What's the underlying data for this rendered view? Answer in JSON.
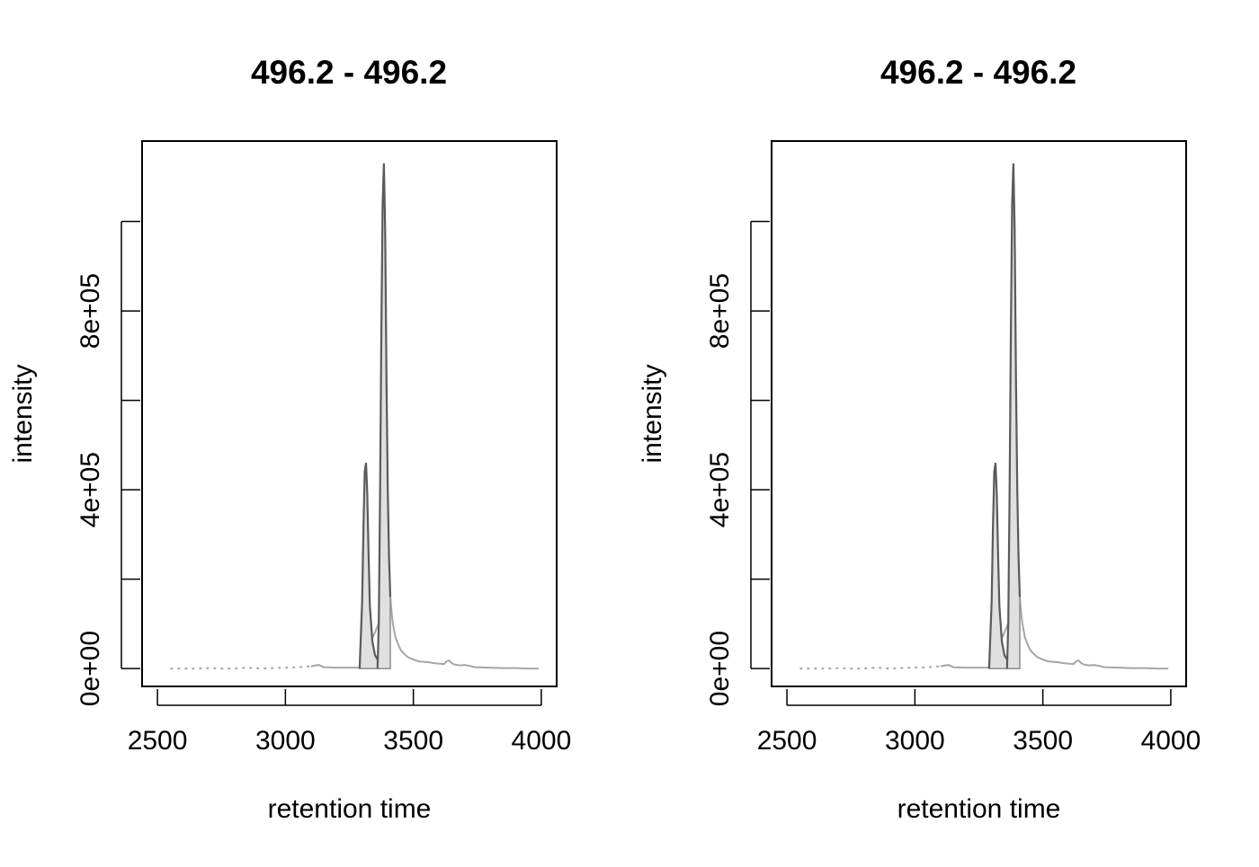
{
  "chart_data": [
    {
      "type": "line",
      "title": "496.2 - 496.2",
      "xlabel": "retention time",
      "ylabel": "intensity",
      "xlim": [
        2440,
        4060
      ],
      "ylim": [
        -40000,
        1180000
      ],
      "x_ticks": [
        2500,
        3000,
        3500,
        4000
      ],
      "x_tick_labels": [
        "2500",
        "3000",
        "3500",
        "4000"
      ],
      "y_ticks": [
        0,
        200000,
        400000,
        600000,
        800000,
        1000000
      ],
      "y_tick_labels": [
        "0e+00",
        "",
        "4e+05",
        "",
        "8e+05",
        ""
      ],
      "grid": false,
      "colors": {
        "peak_line": "#5a5a5a",
        "peak_fill": "#e0e0e0",
        "trace": "#a6a6a6"
      },
      "series": [
        {
          "role": "chromatogram-trace",
          "x": [
            2550,
            2600,
            2650,
            2700,
            2750,
            2800,
            2850,
            2900,
            2950,
            3000,
            3050,
            3100,
            3130,
            3150,
            3200,
            3250,
            3290,
            3410,
            3415,
            3420,
            3425,
            3430,
            3440,
            3450,
            3460,
            3470,
            3480,
            3500,
            3520,
            3540,
            3560,
            3580,
            3600,
            3620,
            3630,
            3640,
            3650,
            3660,
            3680,
            3700,
            3720,
            3740,
            3800,
            3850,
            3900,
            3950,
            3990
          ],
          "y": [
            0,
            0,
            0,
            1000,
            0,
            0,
            2000,
            0,
            1000,
            2000,
            3000,
            5000,
            8000,
            3000,
            2000,
            2000,
            2000,
            160000,
            125000,
            100000,
            85000,
            70000,
            55000,
            42000,
            35000,
            30000,
            25000,
            20000,
            16000,
            15000,
            14000,
            12000,
            11000,
            10000,
            16000,
            18000,
            12000,
            9000,
            7000,
            8000,
            6000,
            3000,
            2000,
            1000,
            1000,
            0,
            0
          ]
        },
        {
          "role": "peak-1",
          "x": [
            3290,
            3300,
            3305,
            3310,
            3315,
            3320,
            3325,
            3330,
            3340,
            3350,
            3360,
            3370
          ],
          "y": [
            0,
            150000,
            320000,
            440000,
            460000,
            390000,
            260000,
            140000,
            60000,
            30000,
            20000,
            10000
          ]
        },
        {
          "role": "peak-2",
          "x": [
            3360,
            3365,
            3370,
            3375,
            3380,
            3385,
            3390,
            3395,
            3400,
            3405,
            3410
          ],
          "y": [
            0,
            100000,
            380000,
            760000,
            1040000,
            1130000,
            980000,
            640000,
            400000,
            250000,
            160000
          ]
        }
      ]
    },
    {
      "type": "line",
      "title": "496.2 - 496.2",
      "xlabel": "retention time",
      "ylabel": "intensity",
      "xlim": [
        2440,
        4060
      ],
      "ylim": [
        -40000,
        1180000
      ],
      "x_ticks": [
        2500,
        3000,
        3500,
        4000
      ],
      "x_tick_labels": [
        "2500",
        "3000",
        "3500",
        "4000"
      ],
      "y_ticks": [
        0,
        200000,
        400000,
        600000,
        800000,
        1000000
      ],
      "y_tick_labels": [
        "0e+00",
        "",
        "4e+05",
        "",
        "8e+05",
        ""
      ],
      "grid": false,
      "colors": {
        "peak_line": "#5a5a5a",
        "peak_fill": "#e0e0e0",
        "trace": "#a6a6a6"
      },
      "series": [
        {
          "role": "chromatogram-trace",
          "x": [
            2550,
            2600,
            2650,
            2700,
            2750,
            2800,
            2850,
            2900,
            2950,
            3000,
            3050,
            3100,
            3130,
            3150,
            3200,
            3250,
            3290,
            3410,
            3415,
            3420,
            3425,
            3430,
            3440,
            3450,
            3460,
            3470,
            3480,
            3500,
            3520,
            3540,
            3560,
            3580,
            3600,
            3620,
            3630,
            3640,
            3650,
            3660,
            3680,
            3700,
            3720,
            3740,
            3800,
            3850,
            3900,
            3950,
            3990
          ],
          "y": [
            0,
            0,
            0,
            1000,
            0,
            0,
            2000,
            0,
            1000,
            2000,
            3000,
            5000,
            8000,
            3000,
            2000,
            2000,
            2000,
            160000,
            125000,
            100000,
            85000,
            70000,
            55000,
            42000,
            35000,
            30000,
            25000,
            20000,
            16000,
            15000,
            14000,
            12000,
            11000,
            10000,
            16000,
            18000,
            12000,
            9000,
            7000,
            8000,
            6000,
            3000,
            2000,
            1000,
            1000,
            0,
            0
          ]
        },
        {
          "role": "peak-1",
          "x": [
            3290,
            3300,
            3305,
            3310,
            3315,
            3320,
            3325,
            3330,
            3340,
            3350,
            3360,
            3370
          ],
          "y": [
            0,
            150000,
            320000,
            440000,
            460000,
            390000,
            260000,
            140000,
            60000,
            30000,
            20000,
            10000
          ]
        },
        {
          "role": "peak-2",
          "x": [
            3360,
            3365,
            3370,
            3375,
            3380,
            3385,
            3390,
            3395,
            3400,
            3405,
            3410
          ],
          "y": [
            0,
            100000,
            380000,
            760000,
            1040000,
            1130000,
            980000,
            640000,
            400000,
            250000,
            160000
          ]
        }
      ]
    }
  ]
}
